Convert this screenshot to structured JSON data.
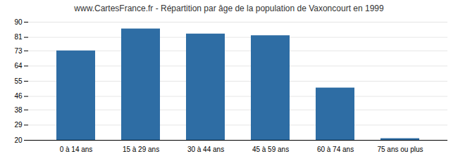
{
  "chart_data": {
    "type": "bar",
    "title": "www.CartesFrance.fr - Répartition par âge de la population de Vaxoncourt en 1999",
    "categories": [
      "0 à 14 ans",
      "15 à 29 ans",
      "30 à 44 ans",
      "45 à 59 ans",
      "60 à 74 ans",
      "75 ans ou plus"
    ],
    "values": [
      73,
      86,
      83,
      82,
      51,
      21
    ],
    "color": "#2e6da4",
    "ylim": [
      20,
      90
    ],
    "yticks": [
      20,
      29,
      38,
      46,
      55,
      64,
      73,
      81,
      90
    ],
    "grid": true
  }
}
